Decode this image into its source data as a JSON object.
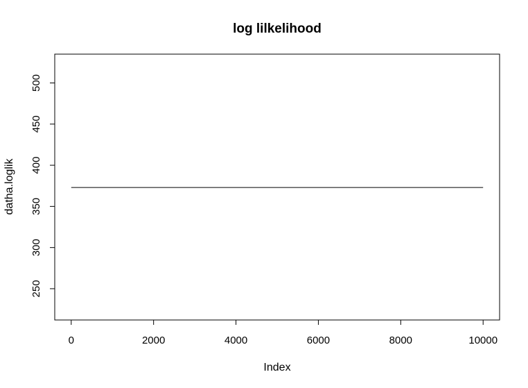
{
  "chart_data": {
    "type": "line",
    "title": "log lilkelihood",
    "xlabel": "Index",
    "ylabel": "datha.loglik",
    "xlim": [
      -400,
      10400
    ],
    "ylim": [
      212,
      535
    ],
    "xticks": [
      0,
      2000,
      4000,
      6000,
      8000,
      10000
    ],
    "yticks": [
      250,
      300,
      350,
      400,
      450,
      500
    ],
    "grid": false,
    "series": [
      {
        "x": [
          1,
          10000
        ],
        "y": [
          373,
          373
        ]
      }
    ]
  }
}
